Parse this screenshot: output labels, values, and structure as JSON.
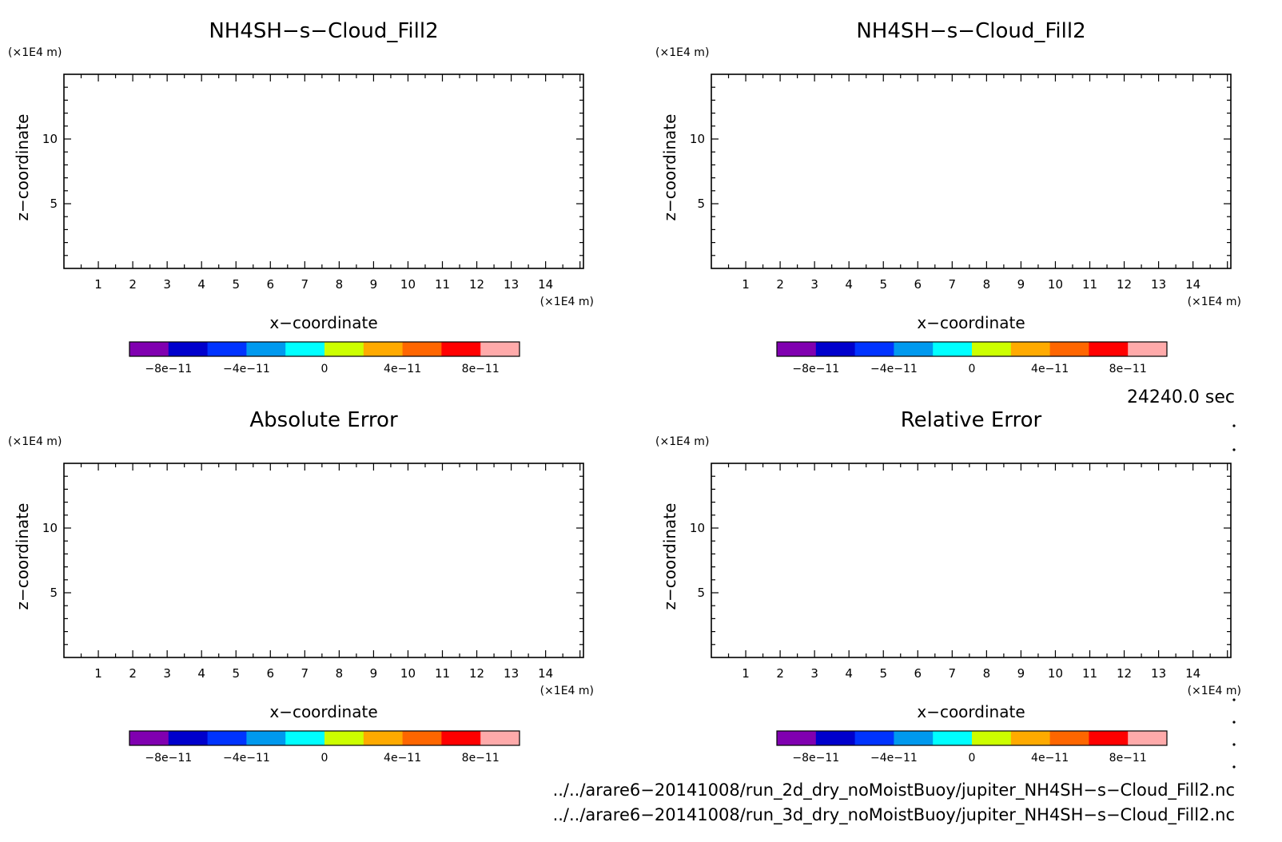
{
  "chart_data": [
    {
      "type": "heatmap",
      "title": "NH4SH−s−Cloud_Fill2",
      "xlabel": "x−coordinate",
      "ylabel": "z−coordinate",
      "x_unit": "(×1E4 m)",
      "y_unit": "(×1E4 m)",
      "xlim": [
        0,
        15.1
      ],
      "ylim": [
        0,
        15
      ],
      "x_ticks": [
        "1",
        "2",
        "3",
        "4",
        "5",
        "6",
        "7",
        "8",
        "9",
        "10",
        "11",
        "12",
        "13",
        "14"
      ],
      "y_ticks": [
        "5",
        "10"
      ],
      "colorbar": {
        "colors": [
          "#8000b0",
          "#0000cc",
          "#0033ff",
          "#0099ee",
          "#00ffff",
          "#ccff00",
          "#ffaa00",
          "#ff6600",
          "#ff0000",
          "#ffaaaa"
        ],
        "labels": [
          "−8e−11",
          "−4e−11",
          "0",
          "4e−11",
          "8e−11"
        ]
      }
    },
    {
      "type": "heatmap",
      "title": "NH4SH−s−Cloud_Fill2",
      "xlabel": "x−coordinate",
      "ylabel": "z−coordinate",
      "x_unit": "(×1E4 m)",
      "y_unit": "(×1E4 m)",
      "xlim": [
        0,
        15.1
      ],
      "ylim": [
        0,
        15
      ],
      "x_ticks": [
        "1",
        "2",
        "3",
        "4",
        "5",
        "6",
        "7",
        "8",
        "9",
        "10",
        "11",
        "12",
        "13",
        "14"
      ],
      "y_ticks": [
        "5",
        "10"
      ],
      "colorbar": {
        "colors": [
          "#8000b0",
          "#0000cc",
          "#0033ff",
          "#0099ee",
          "#00ffff",
          "#ccff00",
          "#ffaa00",
          "#ff6600",
          "#ff0000",
          "#ffaaaa"
        ],
        "labels": [
          "−8e−11",
          "−4e−11",
          "0",
          "4e−11",
          "8e−11"
        ]
      }
    },
    {
      "type": "heatmap",
      "title": "Absolute Error",
      "xlabel": "x−coordinate",
      "ylabel": "z−coordinate",
      "x_unit": "(×1E4 m)",
      "y_unit": "(×1E4 m)",
      "xlim": [
        0,
        15.1
      ],
      "ylim": [
        0,
        15
      ],
      "x_ticks": [
        "1",
        "2",
        "3",
        "4",
        "5",
        "6",
        "7",
        "8",
        "9",
        "10",
        "11",
        "12",
        "13",
        "14"
      ],
      "y_ticks": [
        "5",
        "10"
      ],
      "colorbar": {
        "colors": [
          "#8000b0",
          "#0000cc",
          "#0033ff",
          "#0099ee",
          "#00ffff",
          "#ccff00",
          "#ffaa00",
          "#ff6600",
          "#ff0000",
          "#ffaaaa"
        ],
        "labels": [
          "−8e−11",
          "−4e−11",
          "0",
          "4e−11",
          "8e−11"
        ]
      }
    },
    {
      "type": "heatmap",
      "title": "Relative Error",
      "xlabel": "x−coordinate",
      "ylabel": "z−coordinate",
      "x_unit": "(×1E4 m)",
      "y_unit": "(×1E4 m)",
      "xlim": [
        0,
        15.1
      ],
      "ylim": [
        0,
        15
      ],
      "x_ticks": [
        "1",
        "2",
        "3",
        "4",
        "5",
        "6",
        "7",
        "8",
        "9",
        "10",
        "11",
        "12",
        "13",
        "14"
      ],
      "y_ticks": [
        "5",
        "10"
      ],
      "colorbar": {
        "colors": [
          "#8000b0",
          "#0000cc",
          "#0033ff",
          "#0099ee",
          "#00ffff",
          "#ccff00",
          "#ffaa00",
          "#ff6600",
          "#ff0000",
          "#ffaaaa"
        ],
        "labels": [
          "−8e−11",
          "−4e−11",
          "0",
          "4e−11",
          "8e−11"
        ]
      }
    }
  ],
  "figure": {
    "time_label": "24240.0 sec",
    "file_paths": [
      "../../arare6−20141008/run_2d_dry_noMoistBuoy/jupiter_NH4SH−s−Cloud_Fill2.nc",
      "../../arare6−20141008/run_3d_dry_noMoistBuoy/jupiter_NH4SH−s−Cloud_Fill2.nc"
    ]
  }
}
